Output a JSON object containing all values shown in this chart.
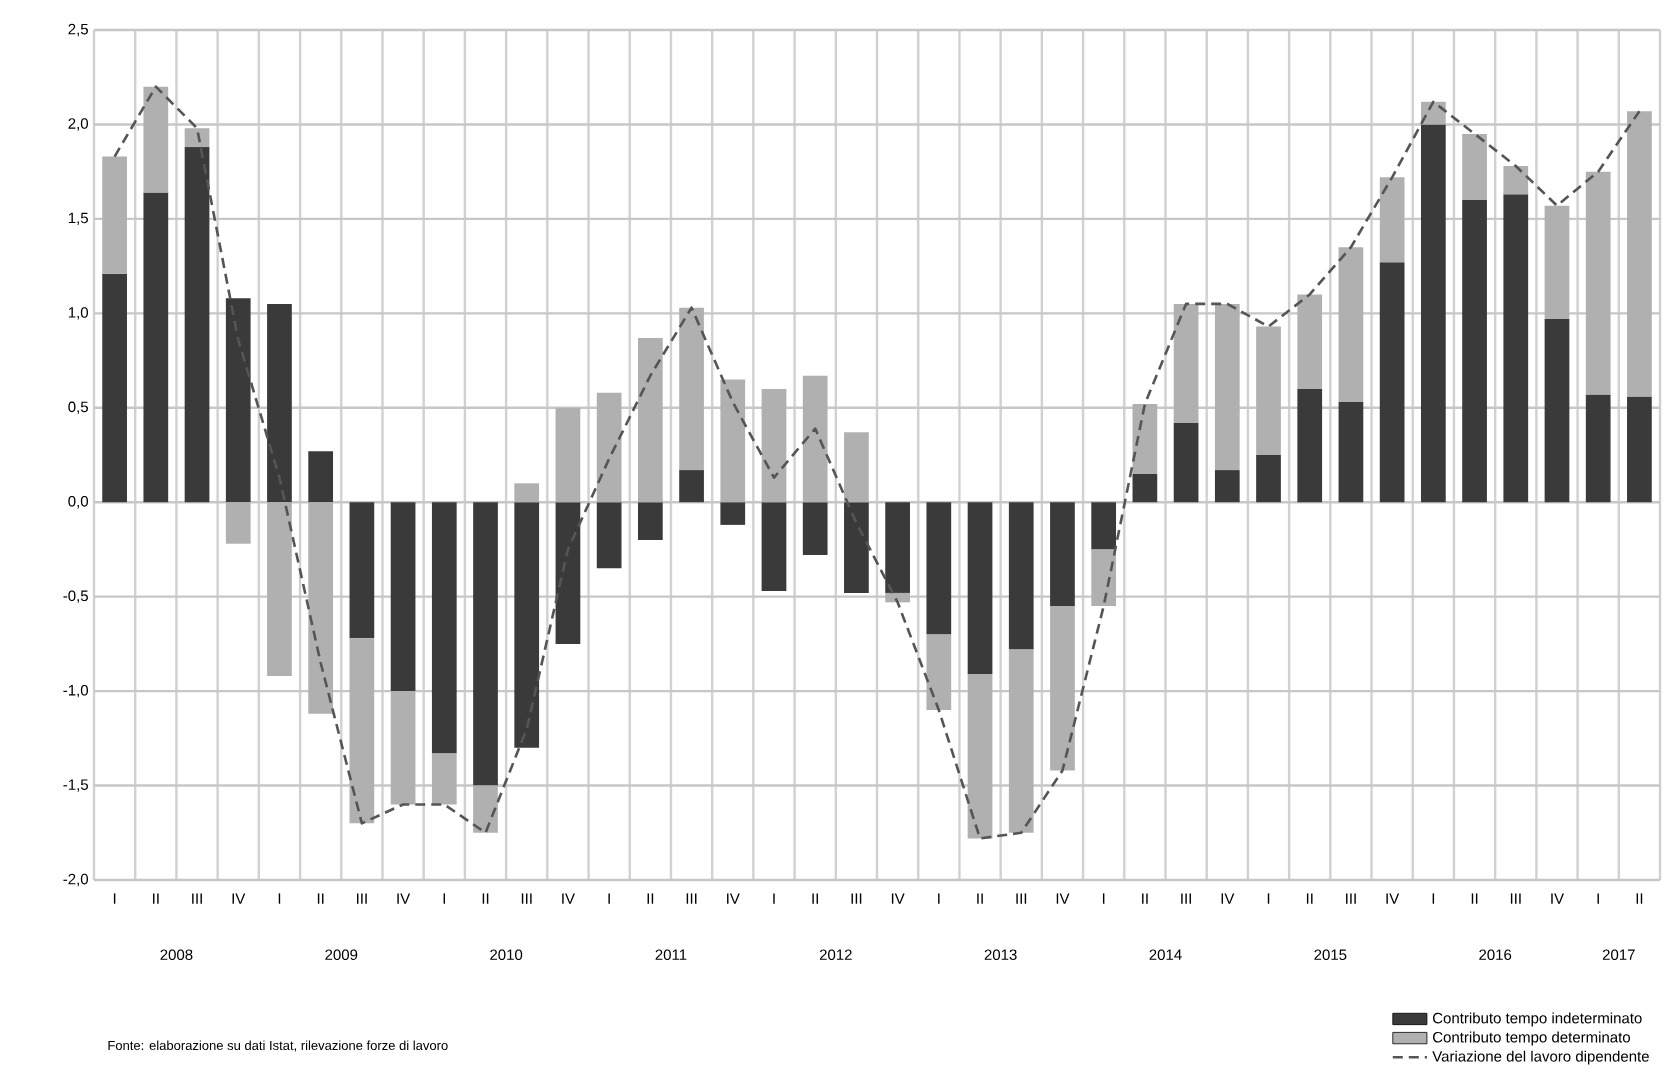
{
  "chart_data": {
    "type": "bar",
    "stacked": true,
    "categories": [
      "I",
      "II",
      "III",
      "IV",
      "I",
      "II",
      "III",
      "IV",
      "I",
      "II",
      "III",
      "IV",
      "I",
      "II",
      "III",
      "IV",
      "I",
      "II",
      "III",
      "IV",
      "I",
      "II",
      "III",
      "IV",
      "I",
      "II",
      "III",
      "IV",
      "I",
      "II",
      "III",
      "IV",
      "I",
      "II",
      "III",
      "IV",
      "I",
      "II"
    ],
    "series": [
      {
        "name": "Contributo tempo indeterminato",
        "color": "#3a3a3a",
        "values": [
          1.21,
          1.64,
          1.88,
          1.08,
          1.05,
          0.27,
          -0.72,
          -1.0,
          -1.33,
          -1.5,
          -1.3,
          -0.75,
          -0.35,
          -0.2,
          0.17,
          -0.12,
          -0.47,
          -0.28,
          -0.48,
          -0.48,
          -0.7,
          -0.91,
          -0.78,
          -0.55,
          -0.25,
          0.15,
          0.42,
          0.17,
          0.25,
          0.6,
          0.53,
          1.27,
          2.0,
          1.6,
          1.63,
          0.97,
          0.57,
          0.56
        ]
      },
      {
        "name": "Contributo tempo determinato",
        "color": "#b0b0b0",
        "values": [
          0.62,
          0.56,
          0.1,
          -0.22,
          -0.92,
          -1.12,
          -0.98,
          -0.6,
          -0.27,
          -0.25,
          0.1,
          0.5,
          0.58,
          0.87,
          0.86,
          0.65,
          0.6,
          0.67,
          0.37,
          -0.05,
          -0.4,
          -0.87,
          -0.97,
          -0.87,
          -0.3,
          0.37,
          0.63,
          0.88,
          0.68,
          0.5,
          0.82,
          0.45,
          0.12,
          0.35,
          0.15,
          0.6,
          1.18,
          1.51
        ]
      },
      {
        "name": "Variazione del lavoro dipendente",
        "type": "line",
        "color": "#555555",
        "line_style": "dashed",
        "marker": "none",
        "values": [
          1.83,
          2.2,
          1.98,
          0.86,
          0.13,
          -0.85,
          -1.7,
          -1.6,
          -1.6,
          -1.75,
          -1.2,
          -0.25,
          0.23,
          0.67,
          1.03,
          0.53,
          0.13,
          0.39,
          -0.11,
          -0.53,
          -1.1,
          -1.78,
          -1.75,
          -1.42,
          -0.55,
          0.52,
          1.05,
          1.05,
          0.93,
          1.1,
          1.35,
          1.72,
          2.12,
          1.95,
          1.78,
          1.57,
          1.75,
          2.07
        ]
      }
    ],
    "ylim": [
      -2.0,
      2.5
    ],
    "yticks": [
      {
        "value": 2.5,
        "label": "2,5"
      },
      {
        "value": 2.0,
        "label": "2,0"
      },
      {
        "value": 1.5,
        "label": "1,5"
      },
      {
        "value": 1.0,
        "label": "1,0"
      },
      {
        "value": 0.5,
        "label": "0,5"
      },
      {
        "value": 0.0,
        "label": "0,0"
      },
      {
        "value": -0.5,
        "label": "-0,5"
      },
      {
        "value": -1.0,
        "label": "-1,0"
      },
      {
        "value": -1.5,
        "label": "-1,5"
      },
      {
        "value": -2.0,
        "label": "-2,0"
      }
    ],
    "grid": true,
    "legend": "bottom right",
    "annotations": [
      "2008",
      "2009",
      "2010",
      "2011",
      "2012",
      "2013",
      "2014",
      "2015",
      "2016",
      "2017",
      "Fonte: elaborazione su dati Istat, rilevazione forze di lavoro"
    ]
  }
}
